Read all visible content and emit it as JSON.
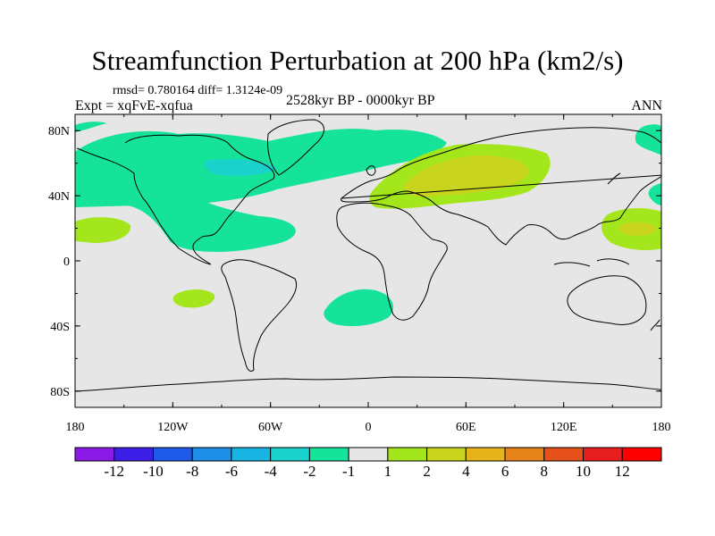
{
  "title": "Streamfunction Perturbation at 200 hPa (km2/s)",
  "rmsd_line": "rmsd= 0.780164 diff= 1.3124e-09",
  "experiment": "Expt = xqFvE-xqfua",
  "period": "2528kyr BP - 0000kyr BP",
  "season": "ANN",
  "lat_labels": [
    "80N",
    "40N",
    "0",
    "40S",
    "80S"
  ],
  "lon_labels": [
    "180",
    "120W",
    "60W",
    "0",
    "60E",
    "120E",
    "180"
  ],
  "colorbar": {
    "labels": [
      "-12",
      "-10",
      "-8",
      "-6",
      "-4",
      "-2",
      "-1",
      "1",
      "2",
      "4",
      "6",
      "8",
      "10",
      "12"
    ],
    "colors": [
      "#8c1ae6",
      "#3c1ee6",
      "#1d5ae8",
      "#1e8ee6",
      "#18b4e2",
      "#19d2cc",
      "#15e39a",
      "#e6e6e6",
      "#a3e61b",
      "#c9d41c",
      "#e6b41a",
      "#e6821a",
      "#e6501a",
      "#e61e1e",
      "#ff0000"
    ]
  },
  "colors": {
    "background_field": "#e6e6e6",
    "coast": "#000000"
  }
}
